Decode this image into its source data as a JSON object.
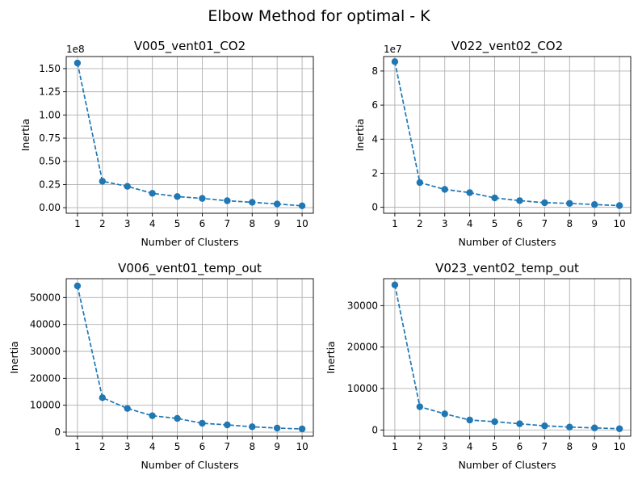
{
  "figure": {
    "suptitle": "Elbow Method for optimal - K",
    "line_color": "#1f77b4",
    "grid_color": "#b0b0b0"
  },
  "chart_data": [
    {
      "type": "line",
      "title": "V005_vent01_CO2",
      "xlabel": "Number of Clusters",
      "ylabel": "Inertia",
      "offset_text": "1e8",
      "x": [
        1,
        2,
        3,
        4,
        5,
        6,
        7,
        8,
        9,
        10
      ],
      "y": [
        156000000,
        28500000,
        23000000,
        15500000,
        12000000,
        10000000,
        7500000,
        5800000,
        4000000,
        2000000
      ],
      "ylim": [
        -6000000,
        163000000
      ],
      "yticks": [
        0,
        25000000,
        50000000,
        75000000,
        100000000,
        125000000,
        150000000
      ],
      "ytick_labels": [
        "0.00",
        "0.25",
        "0.50",
        "0.75",
        "1.00",
        "1.25",
        "1.50"
      ],
      "xticks": [
        1,
        2,
        3,
        4,
        5,
        6,
        7,
        8,
        9,
        10
      ],
      "grid": true,
      "line_style": "dashed",
      "marker": "circle"
    },
    {
      "type": "line",
      "title": "V022_vent02_CO2",
      "xlabel": "Number of Clusters",
      "ylabel": "Inertia",
      "offset_text": "1e7",
      "x": [
        1,
        2,
        3,
        4,
        5,
        6,
        7,
        8,
        9,
        10
      ],
      "y": [
        85500000,
        14500000,
        10500000,
        8600000,
        5500000,
        3900000,
        2700000,
        2300000,
        1600000,
        1000000
      ],
      "ylim": [
        -3500000,
        88500000
      ],
      "yticks": [
        0,
        20000000,
        40000000,
        60000000,
        80000000
      ],
      "ytick_labels": [
        "0",
        "2",
        "4",
        "6",
        "8"
      ],
      "xticks": [
        1,
        2,
        3,
        4,
        5,
        6,
        7,
        8,
        9,
        10
      ],
      "grid": true,
      "line_style": "dashed",
      "marker": "circle"
    },
    {
      "type": "line",
      "title": "V006_vent01_temp_out",
      "xlabel": "Number of Clusters",
      "ylabel": "Inertia",
      "offset_text": "",
      "x": [
        1,
        2,
        3,
        4,
        5,
        6,
        7,
        8,
        9,
        10
      ],
      "y": [
        54300,
        12800,
        8800,
        6100,
        5100,
        3300,
        2700,
        2000,
        1500,
        1200
      ],
      "ylim": [
        -1500,
        57000
      ],
      "yticks": [
        0,
        10000,
        20000,
        30000,
        40000,
        50000
      ],
      "ytick_labels": [
        "0",
        "10000",
        "20000",
        "30000",
        "40000",
        "50000"
      ],
      "xticks": [
        1,
        2,
        3,
        4,
        5,
        6,
        7,
        8,
        9,
        10
      ],
      "grid": true,
      "line_style": "dashed",
      "marker": "circle"
    },
    {
      "type": "line",
      "title": "V023_vent02_temp_out",
      "xlabel": "Number of Clusters",
      "ylabel": "Inertia",
      "offset_text": "",
      "x": [
        1,
        2,
        3,
        4,
        5,
        6,
        7,
        8,
        9,
        10
      ],
      "y": [
        35000,
        5600,
        3900,
        2400,
        2000,
        1500,
        1000,
        700,
        500,
        300
      ],
      "ylim": [
        -1500,
        36500
      ],
      "yticks": [
        0,
        10000,
        20000,
        30000
      ],
      "ytick_labels": [
        "0",
        "10000",
        "20000",
        "30000"
      ],
      "xticks": [
        1,
        2,
        3,
        4,
        5,
        6,
        7,
        8,
        9,
        10
      ],
      "grid": true,
      "line_style": "dashed",
      "marker": "circle"
    }
  ]
}
